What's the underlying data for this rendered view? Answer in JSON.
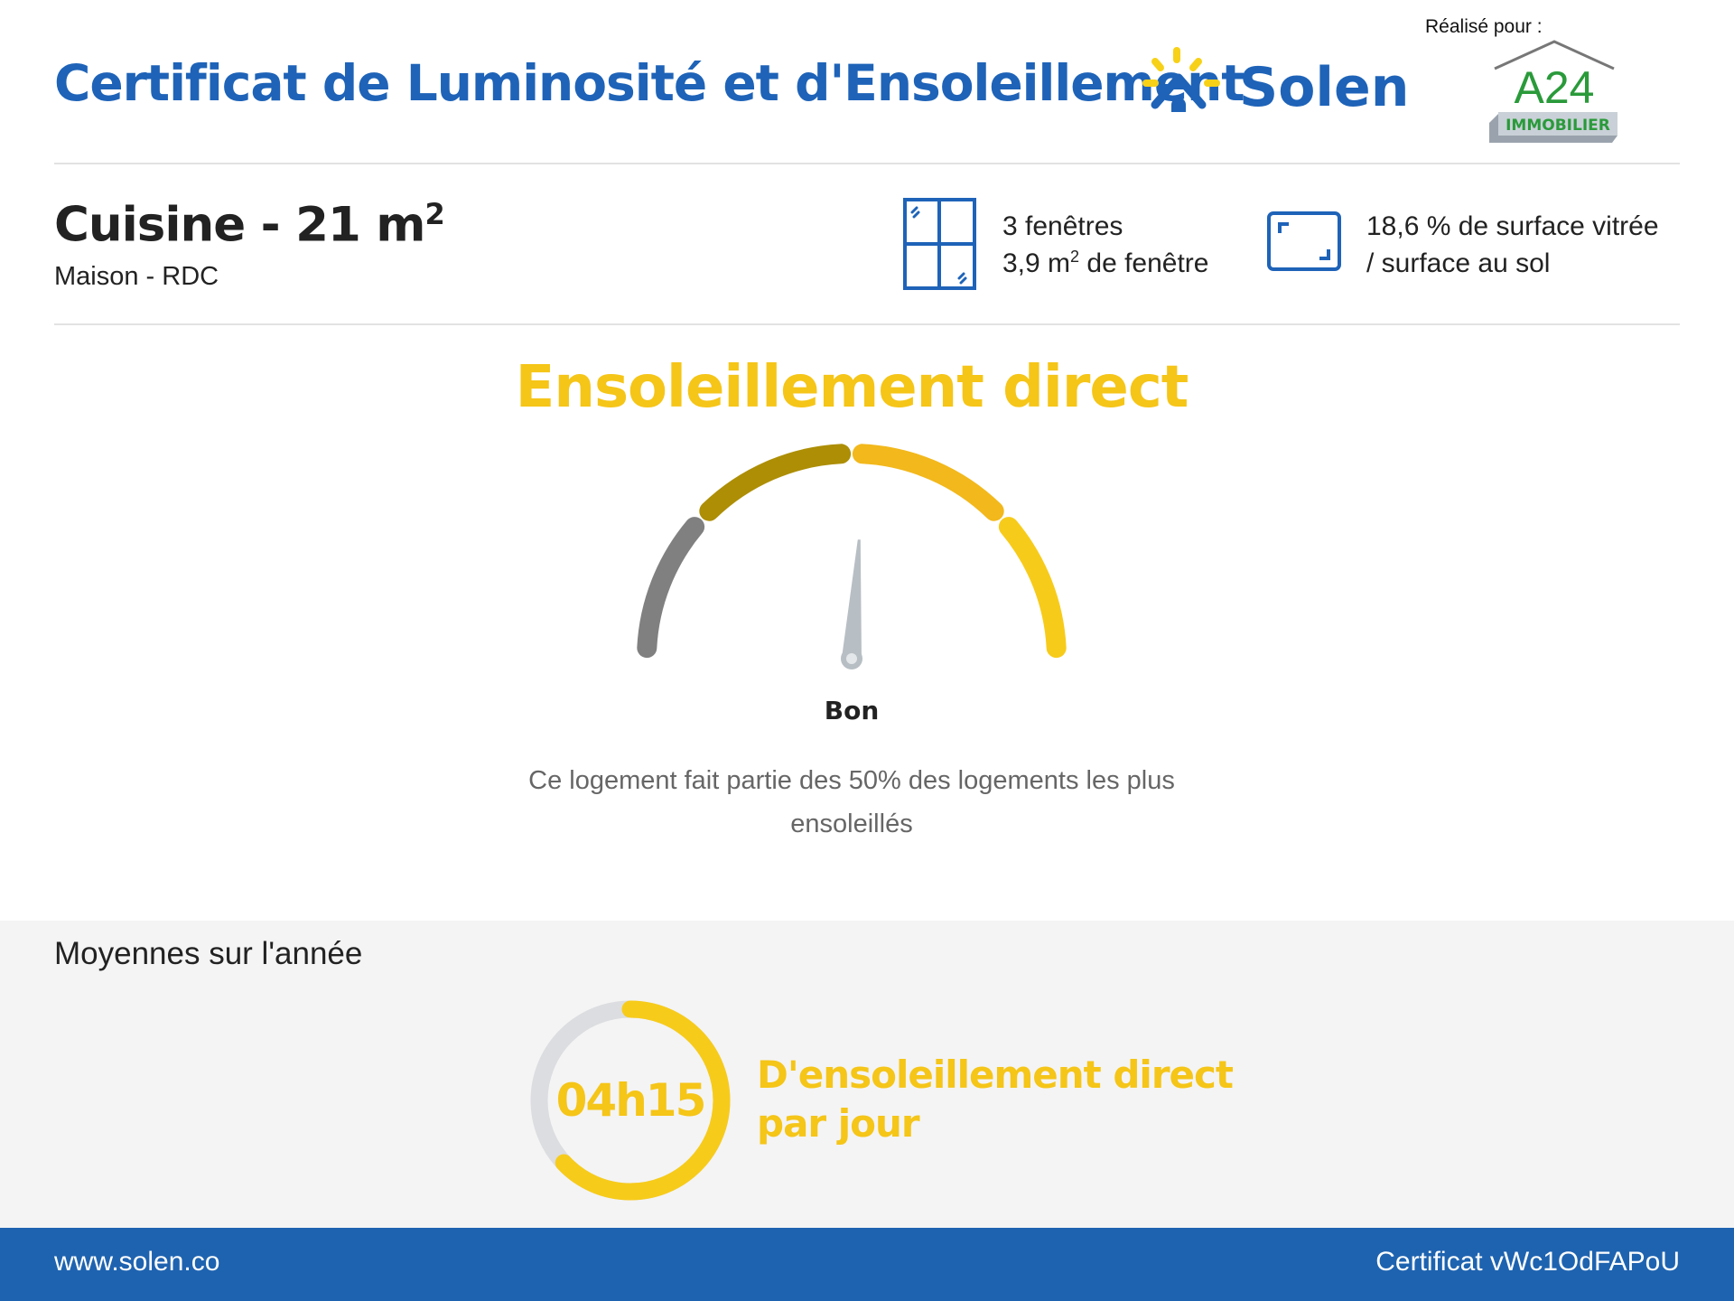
{
  "header": {
    "title": "Certificat de Luminosité et d'Ensoleillement",
    "brand": "Solen",
    "made_for_label": "Réalisé pour :",
    "client_logo": {
      "main": "A24",
      "sub": "IMMOBILIER"
    }
  },
  "room": {
    "name": "Cuisine - 21 m",
    "name_sup": "2",
    "location": "Maison - RDC",
    "windows_count": "3 fenêtres",
    "windows_area": "3,9 m",
    "windows_area_sup": "2",
    "windows_area_suffix": " de fenêtre",
    "glazing_ratio_line1": "18,6 % de surface vitrée",
    "glazing_ratio_line2": "/ surface au sol",
    "icons": [
      "window-icon",
      "floor-surface-icon"
    ]
  },
  "direct_sun": {
    "heading": "Ensoleillement direct",
    "rating": "Bon",
    "gauge_percent": 52,
    "segment_colors": [
      "#808080",
      "#ad8e05",
      "#f2b81c",
      "#f7cb1a"
    ],
    "description": "Ce logement fait partie des 50% des logements les plus ensoleillés"
  },
  "averages": {
    "heading": "Moyennes sur l'année",
    "hours": "04h15",
    "ring_fraction": 0.63,
    "label_line1": "D'ensoleillement direct",
    "label_line2": "par jour"
  },
  "footer": {
    "website": "www.solen.co",
    "certificate": "Certificat vWc1OdFAPoU"
  },
  "colors": {
    "brand_blue": "#1e63b8",
    "sun_yellow": "#f5c518",
    "footer_blue": "#1e63b0"
  }
}
